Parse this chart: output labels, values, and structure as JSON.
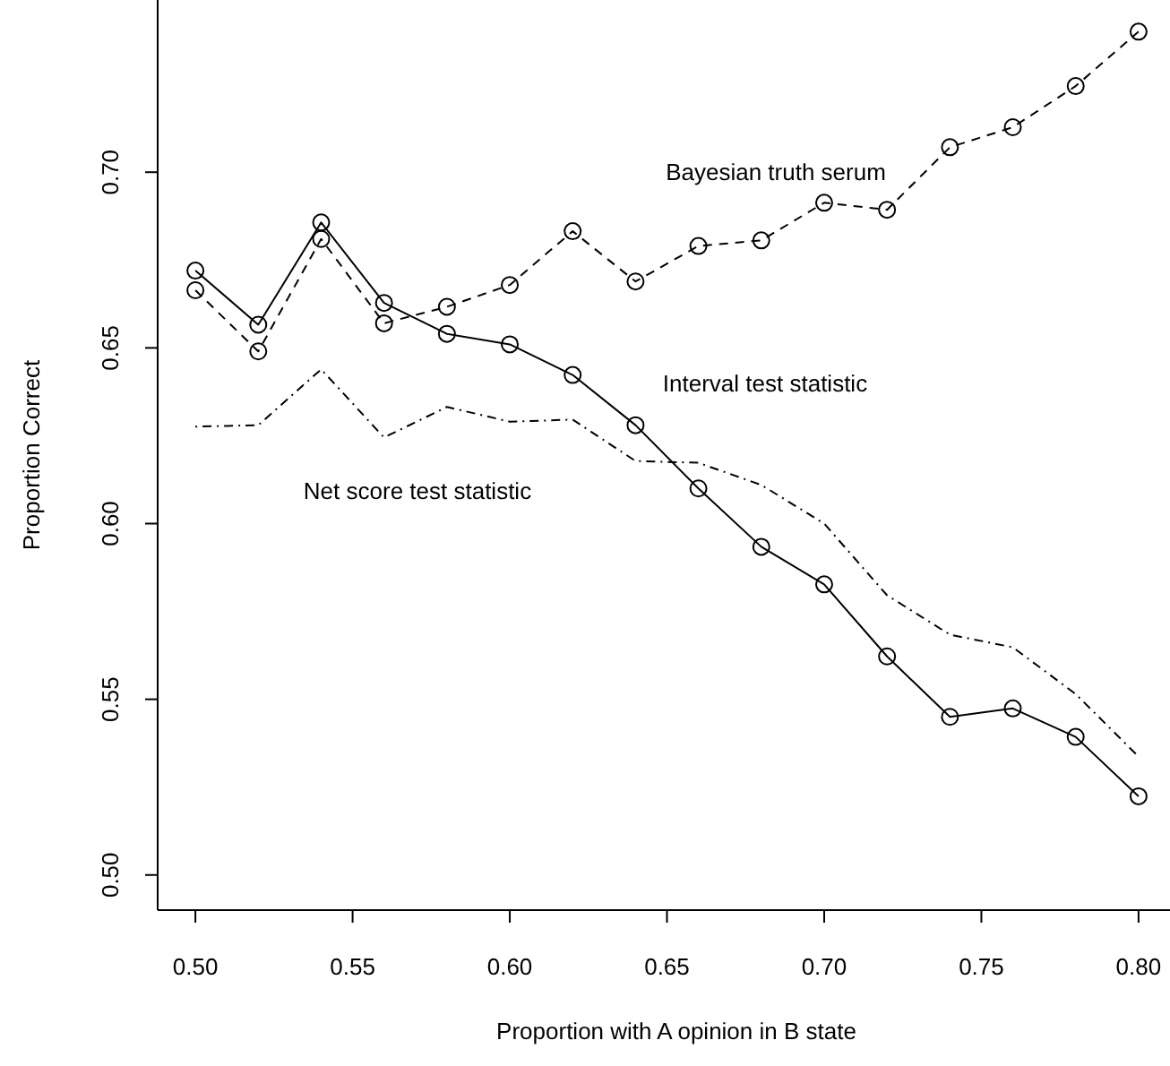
{
  "chart_data": {
    "type": "line",
    "xlabel": "Proportion with A opinion in B state",
    "ylabel": "Proportion Correct",
    "x": [
      0.5,
      0.52,
      0.54,
      0.56,
      0.58,
      0.6,
      0.62,
      0.64,
      0.66,
      0.68,
      0.7,
      0.72,
      0.74,
      0.76,
      0.78,
      0.8
    ],
    "xlim": [
      0.488,
      0.81
    ],
    "xticks": [
      {
        "value": 0.5,
        "label": "0.50"
      },
      0.55,
      {
        "value": 0.6,
        "label": "0.60"
      },
      0.65,
      {
        "value": 0.7,
        "label": "0.70"
      },
      0.75,
      {
        "value": 0.8,
        "label": "0.80"
      }
    ],
    "ylim": [
      0.49,
      0.749
    ],
    "yticks": [
      {
        "value": 0.5,
        "label": "0.50"
      },
      0.55,
      {
        "value": 0.6,
        "label": "0.60"
      },
      0.65,
      {
        "value": 0.7,
        "label": "0.70"
      }
    ],
    "grid": false,
    "series": [
      {
        "color": "#000000",
        "line_style": "solid",
        "marker": "circle",
        "values": [
          0.672,
          0.6566,
          0.6857,
          0.6628,
          0.654,
          0.651,
          0.6423,
          0.628,
          0.61,
          0.5934,
          0.5827,
          0.5622,
          0.545,
          0.5474,
          0.5393,
          0.5224
        ]
      },
      {
        "color": "#000000",
        "line_style": "dashed",
        "marker": "circle",
        "values": [
          0.6664,
          0.649,
          0.681,
          0.657,
          0.6617,
          0.6679,
          0.6832,
          0.6689,
          0.679,
          0.6806,
          0.6913,
          0.6893,
          0.7071,
          0.7128,
          0.7245,
          0.74
        ]
      },
      {
        "color": "#000000",
        "line_style": "dashdot",
        "marker": "none",
        "values": [
          0.6276,
          0.628,
          0.6439,
          0.6245,
          0.6332,
          0.629,
          0.6296,
          0.6178,
          0.6173,
          0.611,
          0.6,
          0.5796,
          0.5684,
          0.5648,
          0.5515,
          0.5337
        ]
      }
    ],
    "annotations": [
      "Bayesian truth serum",
      "Interval test statistic",
      "Net score test statistic"
    ]
  }
}
